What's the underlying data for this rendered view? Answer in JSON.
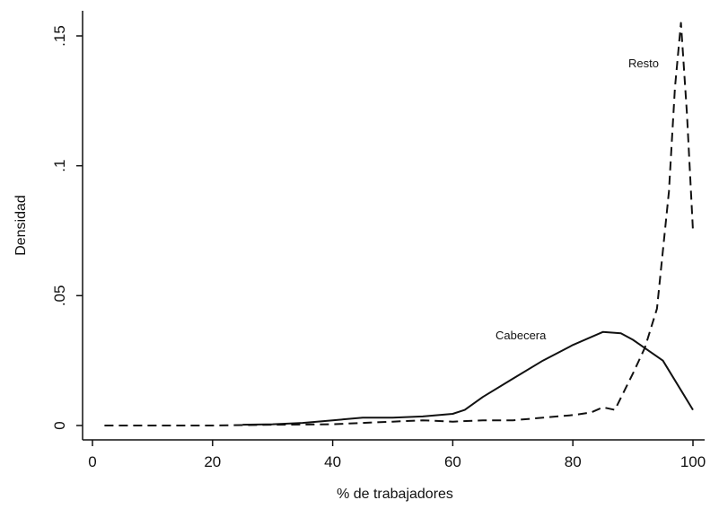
{
  "chart_data": {
    "type": "line",
    "xlabel": "% de trabajadores",
    "ylabel": "Densidad",
    "xlim": [
      0,
      100
    ],
    "ylim": [
      0,
      0.155
    ],
    "xticks": [
      0,
      20,
      40,
      60,
      80,
      100
    ],
    "xtick_labels": [
      "0",
      "20",
      "40",
      "60",
      "80",
      "100"
    ],
    "yticks": [
      0,
      0.05,
      0.1,
      0.15
    ],
    "ytick_labels": [
      "0",
      ".05",
      ".1",
      ".15"
    ],
    "grid": false,
    "legend": "none",
    "series": [
      {
        "name": "Cabecera",
        "style": "solid",
        "color": "#111111",
        "x": [
          25,
          30,
          35,
          40,
          45,
          50,
          55,
          60,
          62,
          65,
          70,
          75,
          80,
          85,
          88,
          90,
          95,
          100
        ],
        "y": [
          0.0003,
          0.0005,
          0.001,
          0.002,
          0.003,
          0.003,
          0.0035,
          0.0045,
          0.006,
          0.011,
          0.018,
          0.025,
          0.031,
          0.036,
          0.0355,
          0.033,
          0.025,
          0.006
        ]
      },
      {
        "name": "Resto",
        "style": "dashed",
        "color": "#111111",
        "x": [
          2,
          10,
          20,
          30,
          40,
          45,
          50,
          55,
          60,
          65,
          70,
          75,
          80,
          83,
          85,
          87,
          90,
          92,
          94,
          96,
          97,
          98,
          99,
          100
        ],
        "y": [
          0,
          0,
          0,
          0.0003,
          0.0005,
          0.001,
          0.0015,
          0.002,
          0.0015,
          0.002,
          0.002,
          0.003,
          0.004,
          0.005,
          0.007,
          0.006,
          0.02,
          0.03,
          0.045,
          0.09,
          0.13,
          0.155,
          0.12,
          0.075
        ]
      }
    ],
    "annotations": [
      {
        "text": "Resto",
        "series": "Resto"
      },
      {
        "text": "Cabecera",
        "series": "Cabecera"
      }
    ]
  }
}
